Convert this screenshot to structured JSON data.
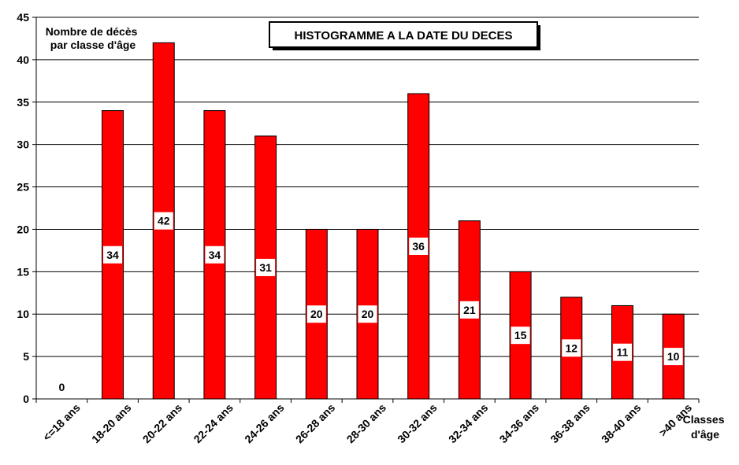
{
  "chart_data": {
    "type": "bar",
    "title": "HISTOGRAMME A LA DATE DU DECES",
    "ylabel_lines": [
      "Nombre de décès",
      "par classe d'âge"
    ],
    "xlabel_lines": [
      "Classes",
      "d'âge"
    ],
    "categories": [
      "<=18 ans",
      "18-20 ans",
      "20-22 ans",
      "22-24 ans",
      "24-26 ans",
      "26-28 ans",
      "28-30 ans",
      "30-32 ans",
      "32-34 ans",
      "34-36 ans",
      "36-38 ans",
      "38-40 ans",
      ">40 ans"
    ],
    "values": [
      0,
      34,
      42,
      34,
      31,
      20,
      20,
      36,
      21,
      15,
      12,
      11,
      10
    ],
    "ylim": [
      0,
      45
    ],
    "yticks": [
      0,
      5,
      10,
      15,
      20,
      25,
      30,
      35,
      40,
      45
    ],
    "grid": true,
    "bar_color": "#ff0000",
    "legend": "none"
  }
}
